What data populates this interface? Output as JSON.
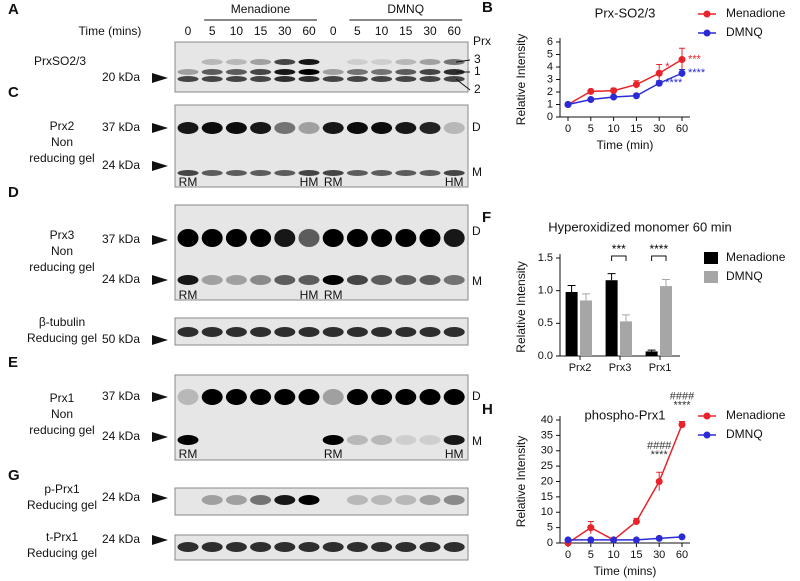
{
  "figure": {
    "A": {
      "letter": "A",
      "time_label": "Time (mins)",
      "groups": [
        "Menadione",
        "DMNQ"
      ],
      "times": [
        "0",
        "5",
        "10",
        "15",
        "30",
        "60"
      ],
      "label": "PrxSO2/3",
      "marker": "20 kDa",
      "prx_label": "Prx",
      "bands": [
        "3",
        "1",
        "2"
      ]
    },
    "blots": [
      {
        "letter": "C",
        "label": [
          "Prx2",
          "Non",
          "reducing gel"
        ],
        "markers": [
          "37 kDa",
          "24 kDa"
        ],
        "forms": [
          "D",
          "M"
        ],
        "tags": [
          "RM",
          null,
          null,
          null,
          null,
          "HM",
          "RM",
          null,
          null,
          null,
          null,
          "HM"
        ]
      },
      {
        "letter": "D",
        "label": [
          "Prx3",
          "Non",
          "reducing gel"
        ],
        "markers": [
          "37 kDa",
          "24 kDa"
        ],
        "forms": [
          "D",
          "M"
        ],
        "tags": [
          "RM",
          null,
          null,
          null,
          null,
          "HM",
          "RM",
          null,
          null,
          null,
          null,
          null
        ]
      },
      {
        "label": [
          "β-tubulin",
          "Reducing gel"
        ],
        "markers": [
          "50 kDa"
        ]
      },
      {
        "letter": "E",
        "label": [
          "Prx1",
          "Non",
          "reducing gel"
        ],
        "markers": [
          "37 kDa",
          "24 kDa"
        ],
        "forms": [
          "D",
          "M"
        ],
        "tags": [
          "RM",
          null,
          null,
          null,
          null,
          null,
          "RM",
          null,
          null,
          null,
          null,
          "HM"
        ]
      },
      {
        "letter": "G",
        "label": [
          "p-Prx1",
          "Reducing gel"
        ],
        "markers": [
          "24 kDa"
        ]
      },
      {
        "label": [
          "t-Prx1",
          "Reducing gel"
        ],
        "markers": [
          "24 kDa"
        ]
      }
    ]
  },
  "chart_data": [
    {
      "type": "line",
      "letter": "B",
      "title": "Prx-SO2/3",
      "x_label": "Time (min)",
      "y_label": "Relative Intensity",
      "categories": [
        "0",
        "5",
        "10",
        "15",
        "30",
        "60"
      ],
      "series": [
        {
          "name": "Menadione",
          "color": "#e8232a",
          "values": [
            1,
            2.05,
            2.1,
            2.6,
            3.5,
            4.6
          ],
          "errors": [
            0.05,
            0.1,
            0.2,
            0.3,
            0.7,
            0.9
          ]
        },
        {
          "name": "DMNQ",
          "color": "#2b2bd6",
          "values": [
            1,
            1.4,
            1.6,
            1.7,
            2.7,
            3.5
          ],
          "errors": [
            0.05,
            0.1,
            0.1,
            0.1,
            0.2,
            0.3
          ]
        }
      ],
      "annotations": [
        {
          "text": "*",
          "color": "#e8232a"
        },
        {
          "text": "***",
          "color": "#e8232a"
        },
        {
          "text": "****",
          "color": "#2b2bd6"
        },
        {
          "text": "****",
          "color": "#2b2bd6"
        }
      ],
      "ylim": [
        0,
        6
      ],
      "yticks": [
        0,
        1,
        2,
        3,
        4,
        5,
        6
      ]
    },
    {
      "type": "bar",
      "letter": "F",
      "title": "Hyperoxidized monomer 60 min",
      "y_label": "Relative Intensity",
      "categories": [
        "Prx2",
        "Prx3",
        "Prx1"
      ],
      "series": [
        {
          "name": "Menadione",
          "color": "#000000",
          "values": [
            0.98,
            1.16,
            0.07
          ],
          "errors": [
            0.1,
            0.1,
            0.02
          ]
        },
        {
          "name": "DMNQ",
          "color": "#a6a6a6",
          "values": [
            0.85,
            0.53,
            1.07
          ],
          "errors": [
            0.1,
            0.1,
            0.1
          ]
        }
      ],
      "annotations": [
        {
          "text": "***",
          "color": "#000000"
        },
        {
          "text": "****",
          "color": "#000000"
        }
      ],
      "ylim": [
        0,
        1.5
      ],
      "yticks": [
        {
          "value": 0,
          "label": "0.0"
        },
        0.5,
        {
          "value": 1,
          "label": "1.0"
        },
        1.5
      ]
    },
    {
      "type": "line",
      "letter": "H",
      "title": "phospho-Prx1",
      "x_label": "Time (mins)",
      "y_label": "Relative Intensity",
      "categories": [
        "0",
        "5",
        "10",
        "15",
        "30",
        "60"
      ],
      "series": [
        {
          "name": "Menadione",
          "color": "#e8232a",
          "values": [
            0,
            5,
            1,
            7,
            20,
            38.5
          ],
          "errors": [
            0.5,
            2,
            0.5,
            1,
            3,
            1
          ]
        },
        {
          "name": "DMNQ",
          "color": "#2b2bd6",
          "values": [
            1,
            1,
            1,
            1,
            1.5,
            2
          ],
          "errors": [
            0.3,
            0.3,
            0.3,
            0.3,
            0.3,
            0.3
          ]
        }
      ],
      "annotations": [
        {
          "text": "####",
          "color": "#333333"
        },
        {
          "text": "****",
          "color": "#333333"
        },
        {
          "text": "####",
          "color": "#333333"
        },
        {
          "text": "****",
          "color": "#333333"
        }
      ],
      "ylim": [
        0,
        40
      ],
      "yticks": [
        0,
        5,
        10,
        15,
        20,
        25,
        30,
        35,
        40
      ]
    }
  ]
}
